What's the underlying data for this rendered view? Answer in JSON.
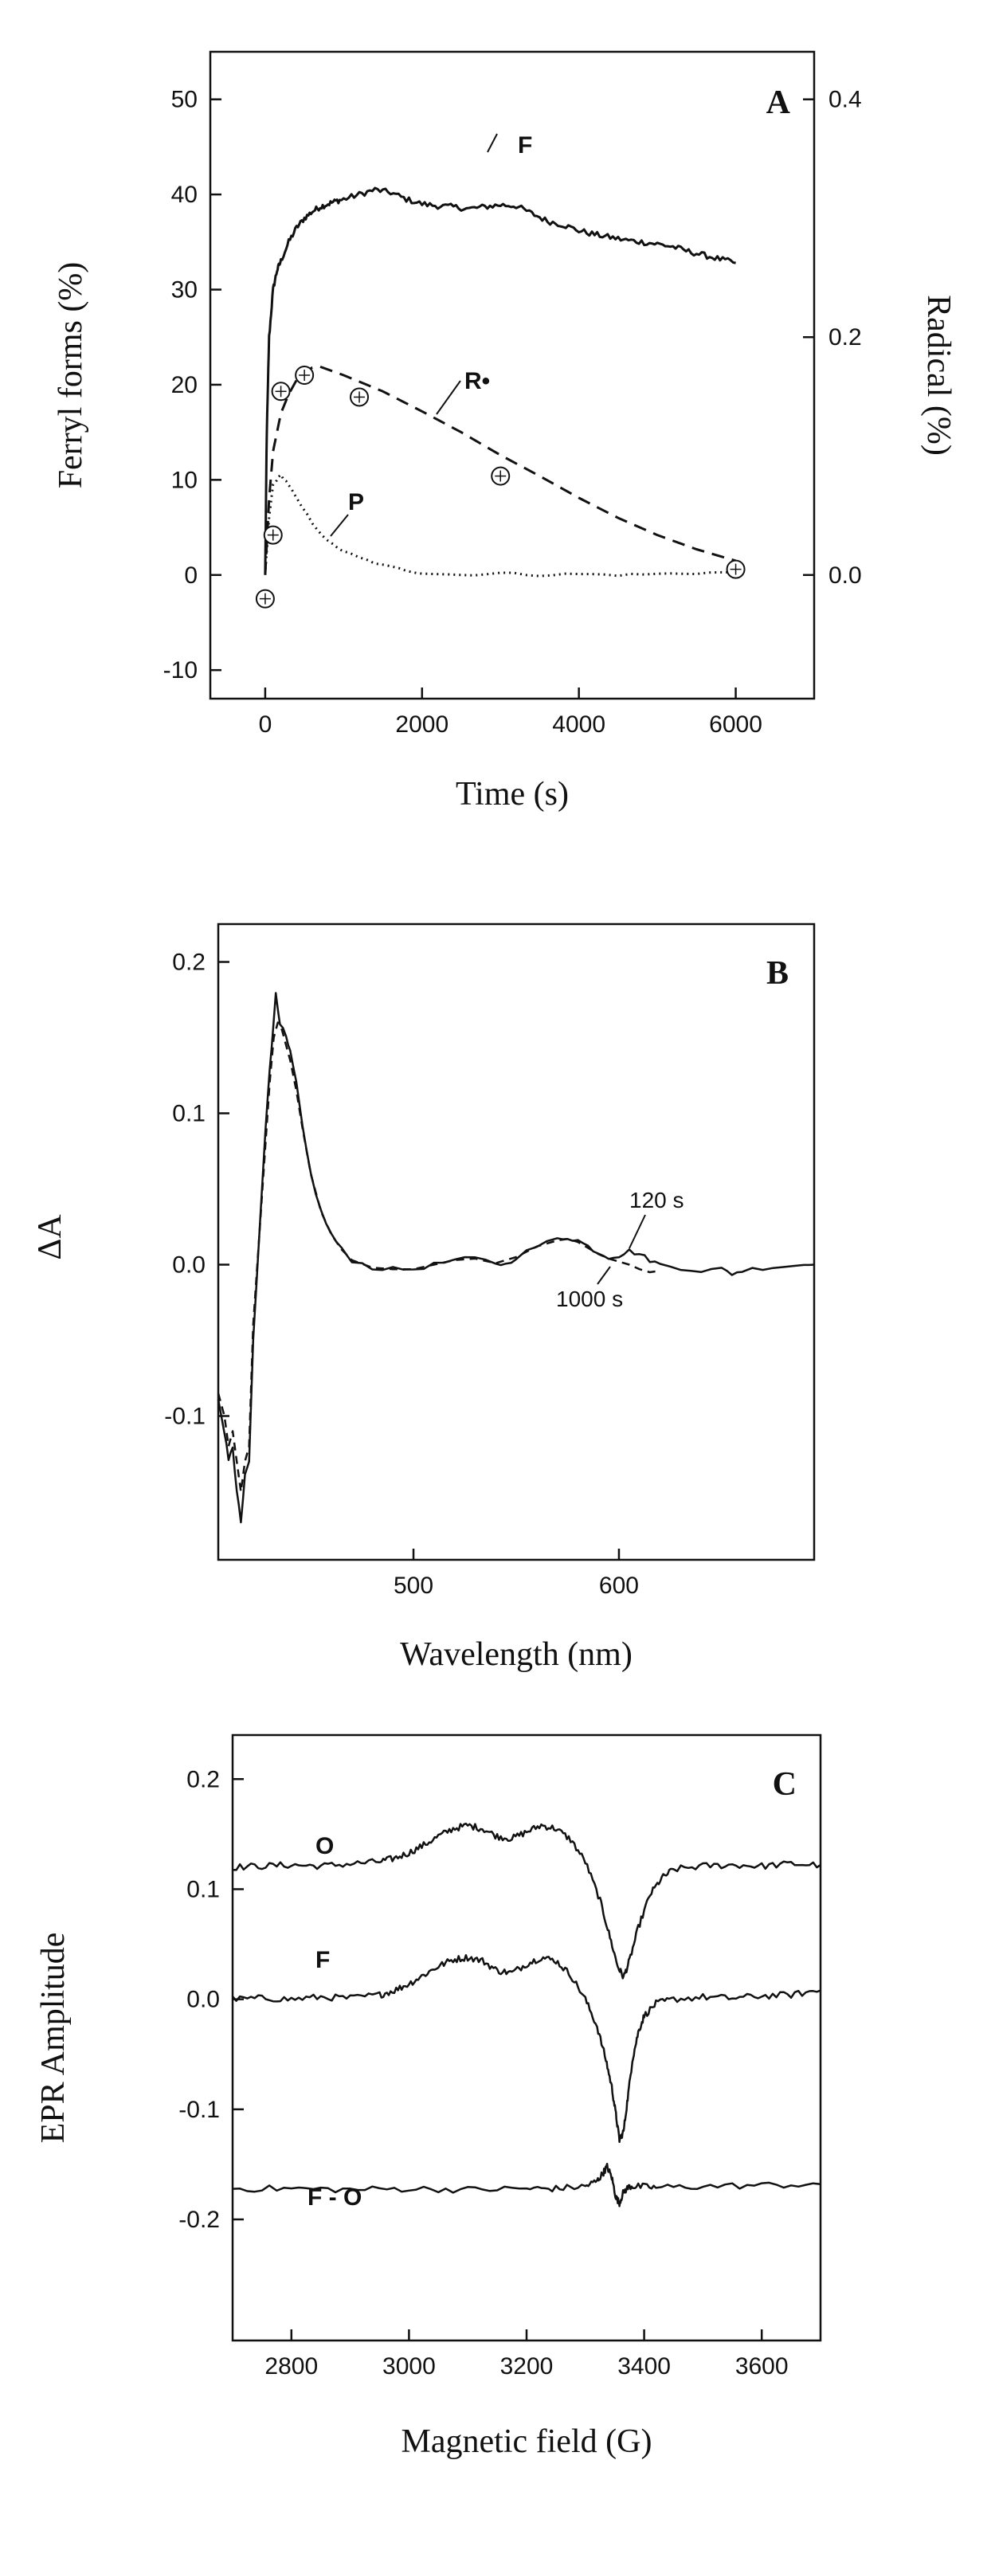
{
  "chart_data": [
    {
      "panel": "A",
      "type": "line",
      "xlabel": "Time (s)",
      "ylabel": "Ferryl forms (%)",
      "y2label": "Radical (%)",
      "xlim": [
        -700,
        7000
      ],
      "ylim": [
        -13,
        55
      ],
      "y2lim": [
        -0.104,
        0.44
      ],
      "xticks": [
        0,
        2000,
        4000,
        6000
      ],
      "yticks": [
        -10,
        0,
        10,
        20,
        30,
        40,
        50
      ],
      "y2ticks": [
        0.0,
        0.2,
        0.4
      ],
      "series": [
        {
          "name": "F",
          "label": "F",
          "style": "solid",
          "x": [
            0,
            20,
            50,
            100,
            150,
            200,
            300,
            400,
            500,
            600,
            700,
            800,
            900,
            1000,
            1200,
            1400,
            1600,
            1800,
            2000,
            2200,
            2400,
            2600,
            2800,
            3000,
            3200,
            3400,
            3600,
            3800,
            4000,
            4200,
            4400,
            4600,
            4800,
            5000,
            5200,
            5400,
            5600,
            5800,
            6000
          ],
          "y": [
            0,
            15,
            25,
            30,
            32,
            33,
            35,
            36.5,
            37.5,
            38.2,
            38.7,
            39.0,
            39.3,
            39.5,
            40.0,
            40.5,
            40.2,
            39.5,
            39.0,
            38.8,
            38.7,
            38.5,
            38.7,
            38.9,
            38.8,
            38.0,
            37.2,
            36.8,
            36.2,
            35.8,
            35.5,
            35.2,
            35.0,
            34.8,
            34.5,
            34.0,
            33.6,
            33.2,
            32.8
          ]
        },
        {
          "name": "P",
          "label": "P",
          "style": "dotted",
          "x": [
            0,
            50,
            100,
            200,
            300,
            400,
            600,
            800,
            1000,
            1200,
            1500,
            1800,
            2000,
            2500,
            3000,
            3500,
            4000,
            4500,
            5000,
            5500,
            6000
          ],
          "y": [
            0,
            6,
            9.5,
            10.5,
            9.5,
            8.0,
            5.5,
            3.5,
            2.5,
            1.8,
            1.0,
            0.5,
            0.2,
            0.0,
            0.2,
            0.0,
            0.1,
            0.0,
            0.1,
            0.2,
            0.3
          ]
        },
        {
          "name": "R•",
          "label": "R•",
          "style": "dashed",
          "x": [
            0,
            50,
            100,
            200,
            300,
            400,
            500,
            600,
            700,
            1000,
            1500,
            2000,
            2500,
            3000,
            3500,
            4000,
            4500,
            5000,
            5500,
            6000
          ],
          "y": [
            0,
            8,
            13,
            17,
            19,
            20.5,
            21.3,
            21.8,
            21.9,
            21.0,
            19.3,
            17.2,
            15.0,
            12.6,
            10.4,
            8.1,
            6.0,
            4.2,
            2.7,
            1.5
          ]
        },
        {
          "name": "Radical (EPR points)",
          "style": "circle-plus",
          "x": [
            0,
            100,
            200,
            500,
            1200,
            3000,
            6000
          ],
          "y": [
            -2.5,
            4.2,
            19.3,
            21.0,
            18.7,
            10.4,
            0.6
          ]
        }
      ]
    },
    {
      "panel": "B",
      "type": "line",
      "xlabel": "Wavelength (nm)",
      "ylabel": "ΔA",
      "xlim": [
        405,
        695
      ],
      "ylim": [
        -0.195,
        0.225
      ],
      "xticks": [
        500,
        600
      ],
      "yticks": [
        -0.1,
        0.0,
        0.1,
        0.2
      ],
      "series": [
        {
          "name": "120 s",
          "label": "120 s",
          "style": "solid",
          "x": [
            405,
            408,
            410,
            412,
            414,
            416,
            418,
            420,
            422,
            425,
            428,
            430,
            432,
            433,
            435,
            438,
            440,
            443,
            446,
            450,
            455,
            460,
            465,
            470,
            480,
            490,
            500,
            510,
            520,
            530,
            540,
            545,
            550,
            560,
            570,
            575,
            580,
            585,
            590,
            595,
            600,
            605,
            610,
            615,
            620,
            630,
            640,
            650,
            655,
            660,
            670,
            680,
            690,
            695
          ],
          "y": [
            -0.09,
            -0.11,
            -0.13,
            -0.12,
            -0.15,
            -0.17,
            -0.14,
            -0.13,
            -0.05,
            0.02,
            0.09,
            0.13,
            0.16,
            0.18,
            0.16,
            0.15,
            0.14,
            0.12,
            0.09,
            0.06,
            0.035,
            0.02,
            0.01,
            0.003,
            -0.002,
            -0.003,
            -0.003,
            0.0,
            0.003,
            0.004,
            0.001,
            0.0,
            0.005,
            0.012,
            0.017,
            0.018,
            0.016,
            0.012,
            0.008,
            0.005,
            0.006,
            0.009,
            0.007,
            0.003,
            0.0,
            -0.002,
            -0.004,
            -0.003,
            -0.006,
            -0.004,
            -0.002,
            -0.001,
            0.0,
            0.0
          ]
        },
        {
          "name": "1000 s",
          "label": "1000 s",
          "style": "dashed",
          "x": [
            405,
            408,
            410,
            412,
            414,
            416,
            418,
            420,
            422,
            425,
            428,
            430,
            432,
            434,
            436,
            438,
            440,
            443,
            446,
            450,
            455,
            460,
            465,
            470,
            480,
            490,
            500,
            510,
            520,
            530,
            540,
            550,
            560,
            570,
            575,
            580,
            585,
            590,
            595,
            600,
            605,
            610,
            615,
            620
          ],
          "y": [
            -0.085,
            -0.1,
            -0.12,
            -0.11,
            -0.13,
            -0.15,
            -0.13,
            -0.12,
            -0.04,
            0.02,
            0.08,
            0.12,
            0.15,
            0.16,
            0.155,
            0.145,
            0.135,
            0.115,
            0.09,
            0.06,
            0.035,
            0.02,
            0.01,
            0.003,
            -0.002,
            -0.003,
            -0.003,
            0.0,
            0.003,
            0.004,
            0.001,
            0.005,
            0.012,
            0.016,
            0.017,
            0.015,
            0.011,
            0.007,
            0.004,
            0.002,
            0.0,
            -0.003,
            -0.005,
            -0.004
          ]
        }
      ]
    },
    {
      "panel": "C",
      "type": "line",
      "xlabel": "Magnetic field (G)",
      "ylabel": "EPR Amplitude",
      "xlim": [
        2700,
        3700
      ],
      "ylim": [
        -0.31,
        0.24
      ],
      "xticks": [
        2800,
        3000,
        3200,
        3400,
        3600
      ],
      "yticks": [
        -0.2,
        -0.1,
        0.0,
        0.1,
        0.2
      ],
      "series": [
        {
          "name": "O",
          "label": "O",
          "style": "solid",
          "x": [
            2700,
            2750,
            2800,
            2850,
            2900,
            2950,
            2975,
            3000,
            3025,
            3050,
            3075,
            3100,
            3125,
            3150,
            3175,
            3200,
            3225,
            3250,
            3275,
            3300,
            3325,
            3340,
            3355,
            3365,
            3375,
            3390,
            3410,
            3430,
            3450,
            3500,
            3550,
            3600,
            3650,
            3700
          ],
          "y": [
            0.12,
            0.121,
            0.122,
            0.121,
            0.123,
            0.125,
            0.128,
            0.133,
            0.14,
            0.148,
            0.155,
            0.158,
            0.155,
            0.148,
            0.146,
            0.152,
            0.158,
            0.155,
            0.145,
            0.125,
            0.09,
            0.06,
            0.03,
            0.02,
            0.035,
            0.065,
            0.095,
            0.11,
            0.118,
            0.121,
            0.122,
            0.121,
            0.123,
            0.122
          ]
        },
        {
          "name": "F",
          "label": "F",
          "style": "solid",
          "x": [
            2700,
            2750,
            2800,
            2850,
            2900,
            2950,
            2975,
            3000,
            3025,
            3050,
            3075,
            3100,
            3125,
            3150,
            3175,
            3200,
            3225,
            3250,
            3275,
            3300,
            3320,
            3335,
            3345,
            3352,
            3358,
            3365,
            3372,
            3380,
            3390,
            3400,
            3420,
            3450,
            3500,
            3550,
            3600,
            3650,
            3700
          ],
          "y": [
            0.0,
            0.001,
            0.0,
            0.002,
            0.001,
            0.004,
            0.008,
            0.014,
            0.022,
            0.03,
            0.036,
            0.038,
            0.035,
            0.026,
            0.024,
            0.032,
            0.038,
            0.035,
            0.022,
            0.0,
            -0.025,
            -0.055,
            -0.08,
            -0.105,
            -0.128,
            -0.12,
            -0.09,
            -0.055,
            -0.03,
            -0.015,
            -0.004,
            0.0,
            0.002,
            0.001,
            0.003,
            0.004,
            0.008
          ]
        },
        {
          "name": "F - O",
          "label": "F - O",
          "style": "solid",
          "x": [
            2700,
            2800,
            2900,
            3000,
            3100,
            3200,
            3250,
            3300,
            3320,
            3330,
            3337,
            3345,
            3352,
            3358,
            3365,
            3375,
            3390,
            3420,
            3500,
            3600,
            3700
          ],
          "y": [
            -0.172,
            -0.172,
            -0.173,
            -0.172,
            -0.173,
            -0.172,
            -0.172,
            -0.17,
            -0.165,
            -0.158,
            -0.152,
            -0.162,
            -0.18,
            -0.185,
            -0.175,
            -0.17,
            -0.17,
            -0.171,
            -0.17,
            -0.169,
            -0.168
          ]
        }
      ]
    }
  ]
}
